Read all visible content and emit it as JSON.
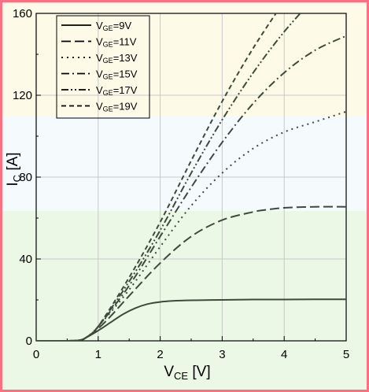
{
  "colors": {
    "frame": "#ff6f80",
    "band_top": "#fdfbe8",
    "band_mid": "#f5fbfd",
    "band_bottom": "#ecf8e6",
    "series": "#3d4a3d"
  },
  "chart_data": {
    "type": "line",
    "title": "",
    "xlabel": "V",
    "xlabel_sub": "CE",
    "xlabel_unit": " [V]",
    "ylabel": "I",
    "ylabel_sub": "C",
    "ylabel_unit": " [A]",
    "xlim": [
      0,
      5
    ],
    "ylim": [
      0,
      160
    ],
    "xticks": [
      "0",
      "1",
      "2",
      "3",
      "4",
      "5"
    ],
    "yticks": [
      "0",
      "40",
      "80",
      "120",
      "160"
    ],
    "grid": true,
    "legend_position": "top-left",
    "series": [
      {
        "name": "VGE=9V",
        "legend_prefix": "V",
        "legend_sub": "GE",
        "legend_suffix": "=9V",
        "dash": "solid",
        "x": [
          0,
          0.5,
          0.7,
          0.8,
          1.0,
          1.2,
          1.4,
          1.6,
          1.8,
          2.0,
          2.2,
          2.5,
          3.0,
          3.5,
          4.0,
          4.5,
          5.0
        ],
        "y": [
          0,
          0,
          0.3,
          1.5,
          5,
          9,
          13,
          16,
          18,
          19,
          19.5,
          19.8,
          20,
          20.2,
          20.2,
          20.3,
          20.3
        ]
      },
      {
        "name": "VGE=11V",
        "legend_prefix": "V",
        "legend_sub": "GE",
        "legend_suffix": "=11V",
        "dash": "long-dash",
        "x": [
          0,
          0.5,
          0.7,
          0.8,
          1.0,
          1.2,
          1.5,
          2.0,
          2.5,
          3.0,
          3.5,
          3.7,
          4.0,
          4.5,
          5.0
        ],
        "y": [
          0,
          0,
          0.3,
          1.5,
          6,
          12,
          22,
          38,
          51,
          59,
          63,
          64,
          65,
          65.5,
          65.5
        ]
      },
      {
        "name": "VGE=13V",
        "legend_prefix": "V",
        "legend_sub": "GE",
        "legend_suffix": "=13V",
        "dash": "dot",
        "x": [
          0,
          0.5,
          0.7,
          0.8,
          1.0,
          1.5,
          2.0,
          2.5,
          3.0,
          3.5,
          4.0,
          4.5,
          5.0
        ],
        "y": [
          0,
          0,
          0.3,
          1.5,
          7,
          25,
          46,
          66,
          82,
          94,
          102,
          107,
          112
        ]
      },
      {
        "name": "VGE=15V",
        "legend_prefix": "V",
        "legend_sub": "GE",
        "legend_suffix": "=15V",
        "dash": "dash-dot",
        "x": [
          0,
          0.5,
          0.7,
          0.8,
          1.0,
          1.5,
          2.0,
          2.5,
          3.0,
          3.5,
          4.0,
          4.5,
          5.0
        ],
        "y": [
          0,
          0,
          0.3,
          1.5,
          7,
          27,
          51,
          75,
          97,
          116,
          131,
          142,
          149
        ]
      },
      {
        "name": "VGE=17V",
        "legend_prefix": "V",
        "legend_sub": "GE",
        "legend_suffix": "=17V",
        "dash": "dash-dot-dot",
        "x": [
          0,
          0.5,
          0.7,
          0.8,
          1.0,
          1.5,
          2.0,
          2.5,
          3.0,
          3.5,
          4.0,
          4.5
        ],
        "y": [
          0,
          0,
          0.3,
          1.5,
          7,
          29,
          54,
          82,
          108,
          131,
          151,
          168
        ]
      },
      {
        "name": "VGE=19V",
        "legend_prefix": "V",
        "legend_sub": "GE",
        "legend_suffix": "=19V",
        "dash": "short-dash",
        "x": [
          0,
          0.5,
          0.7,
          0.8,
          1.0,
          1.5,
          2.0,
          2.5,
          3.0,
          3.5,
          4.0
        ],
        "y": [
          0,
          0,
          0.3,
          1.5,
          7,
          31,
          58,
          88,
          117,
          143,
          166
        ]
      }
    ]
  }
}
